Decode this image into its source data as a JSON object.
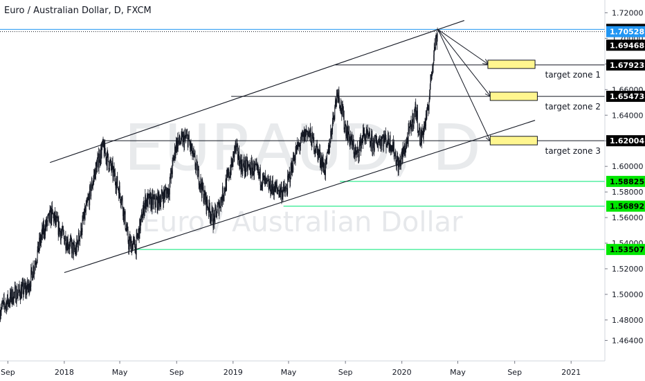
{
  "header": {
    "title": "Euro / Australian Dollar, D, FXCM"
  },
  "watermark": {
    "symbol": "EURAUD, D",
    "name": "Euro / Australian Dollar"
  },
  "colors": {
    "candle": "#131722",
    "trendline": "#131722",
    "hline_blue": "#2196f3",
    "hline_green": "#00e676",
    "zone_fill": "#fff68f",
    "zone_border": "#131722",
    "label_black": "#000000",
    "label_green": "#00e600",
    "label_blue": "#2196f3"
  },
  "chart_data": {
    "type": "candlestick",
    "symbol": "EURAUD",
    "timeframe": "D",
    "ylim": [
      1.448,
      1.73
    ],
    "xlim": [
      "2017-08-15",
      "2021-03-15"
    ],
    "y_ticks": [
      "1.72000",
      "1.70000",
      "1.68000",
      "1.66000",
      "1.64000",
      "1.62000",
      "1.60000",
      "1.58000",
      "1.56000",
      "1.54000",
      "1.52000",
      "1.50000",
      "1.48000",
      "1.46400"
    ],
    "y_tick_values": [
      1.72,
      1.7,
      1.68,
      1.66,
      1.64,
      1.62,
      1.6,
      1.58,
      1.56,
      1.54,
      1.52,
      1.5,
      1.48,
      1.464
    ],
    "x_ticks": [
      {
        "label": "Sep",
        "date": "2017-09-01"
      },
      {
        "label": "2018",
        "date": "2018-01-01"
      },
      {
        "label": "May",
        "date": "2018-05-01"
      },
      {
        "label": "Sep",
        "date": "2018-09-01"
      },
      {
        "label": "2019",
        "date": "2019-01-01"
      },
      {
        "label": "May",
        "date": "2019-05-01"
      },
      {
        "label": "Sep",
        "date": "2019-09-01"
      },
      {
        "label": "2020",
        "date": "2020-01-01"
      },
      {
        "label": "May",
        "date": "2020-05-01"
      },
      {
        "label": "Sep",
        "date": "2020-09-01"
      },
      {
        "label": "2021",
        "date": "2021-01-01"
      }
    ],
    "price_path": [
      [
        "2017-08-15",
        1.488
      ],
      [
        "2017-09-15",
        1.5
      ],
      [
        "2017-10-15",
        1.505
      ],
      [
        "2017-11-15",
        1.548
      ],
      [
        "2017-12-05",
        1.563
      ],
      [
        "2017-12-25",
        1.548
      ],
      [
        "2018-01-10",
        1.54
      ],
      [
        "2018-01-25",
        1.533
      ],
      [
        "2018-02-20",
        1.57
      ],
      [
        "2018-03-10",
        1.598
      ],
      [
        "2018-03-25",
        1.615
      ],
      [
        "2018-04-20",
        1.592
      ],
      [
        "2018-05-05",
        1.575
      ],
      [
        "2018-05-20",
        1.54
      ],
      [
        "2018-06-05",
        1.538
      ],
      [
        "2018-06-25",
        1.573
      ],
      [
        "2018-07-20",
        1.572
      ],
      [
        "2018-08-15",
        1.582
      ],
      [
        "2018-08-31",
        1.618
      ],
      [
        "2018-09-25",
        1.622
      ],
      [
        "2018-10-15",
        1.597
      ],
      [
        "2018-10-31",
        1.576
      ],
      [
        "2018-11-20",
        1.558
      ],
      [
        "2018-12-05",
        1.573
      ],
      [
        "2018-12-31",
        1.603
      ],
      [
        "2019-01-05",
        1.615
      ],
      [
        "2019-01-20",
        1.6
      ],
      [
        "2019-02-15",
        1.598
      ],
      [
        "2019-03-15",
        1.585
      ],
      [
        "2019-04-05",
        1.582
      ],
      [
        "2019-04-25",
        1.58
      ],
      [
        "2019-05-15",
        1.61
      ],
      [
        "2019-06-10",
        1.628
      ],
      [
        "2019-06-30",
        1.614
      ],
      [
        "2019-07-20",
        1.597
      ],
      [
        "2019-08-05",
        1.637
      ],
      [
        "2019-08-15",
        1.66
      ],
      [
        "2019-08-30",
        1.633
      ],
      [
        "2019-09-25",
        1.608
      ],
      [
        "2019-10-10",
        1.625
      ],
      [
        "2019-10-31",
        1.617
      ],
      [
        "2019-11-20",
        1.622
      ],
      [
        "2019-12-10",
        1.618
      ],
      [
        "2019-12-25",
        1.6
      ],
      [
        "2020-01-10",
        1.617
      ],
      [
        "2020-01-31",
        1.645
      ],
      [
        "2020-02-10",
        1.62
      ],
      [
        "2020-02-25",
        1.64
      ],
      [
        "2020-03-10",
        1.69
      ],
      [
        "2020-03-19",
        1.706
      ]
    ],
    "trendlines": [
      {
        "name": "upper-channel",
        "from": [
          "2017-12-01",
          1.603
        ],
        "to": [
          "2020-05-15",
          1.714
        ]
      },
      {
        "name": "lower-channel",
        "from": [
          "2018-01-01",
          1.517
        ],
        "to": [
          "2020-10-15",
          1.636
        ]
      }
    ],
    "arrows": [
      {
        "from": [
          "2020-03-19",
          1.707
        ],
        "to": [
          "2020-07-05",
          1.68
        ]
      },
      {
        "from": [
          "2020-03-19",
          1.707
        ],
        "to": [
          "2020-07-10",
          1.655
        ]
      },
      {
        "from": [
          "2020-03-19",
          1.707
        ],
        "to": [
          "2020-07-10",
          1.62
        ]
      }
    ],
    "horizontal_levels": [
      {
        "price": 1.70705,
        "label": "1.70705",
        "style": "solid",
        "color": "hline_blue",
        "from": "2017-08-15",
        "label_bg": "label_black"
      },
      {
        "price": 1.70528,
        "label": "1.70528",
        "style": "dotted",
        "color": "candle",
        "from": "2017-08-15",
        "label_bg": "label_blue"
      },
      {
        "price": 1.69468,
        "label": "1.69468",
        "style": "none",
        "color": "candle",
        "from": "2021-03-15",
        "label_bg": "label_black"
      },
      {
        "price": 1.67923,
        "label": "1.67923",
        "style": "solid",
        "color": "candle",
        "from": "2019-08-10",
        "label_bg": "label_black"
      },
      {
        "price": 1.65473,
        "label": "1.65473",
        "style": "solid",
        "color": "candle",
        "from": "2018-12-28",
        "label_bg": "label_black"
      },
      {
        "price": 1.62004,
        "label": "1.62004",
        "style": "solid",
        "color": "candle",
        "from": "2018-03-25",
        "label_bg": "label_black"
      },
      {
        "price": 1.58825,
        "label": "1.58825",
        "style": "solid",
        "color": "hline_green",
        "from": "2019-08-20",
        "label_bg": "label_green"
      },
      {
        "price": 1.56892,
        "label": "1.56892",
        "style": "solid",
        "color": "hline_green",
        "from": "2019-04-20",
        "label_bg": "label_green"
      },
      {
        "price": 1.53507,
        "label": "1.53507",
        "style": "solid",
        "color": "hline_green",
        "from": "2018-06-01",
        "label_bg": "label_green"
      }
    ],
    "target_zones": [
      {
        "label": "target zone 1",
        "from": "2020-07-05",
        "to": "2020-10-15",
        "top": 1.683,
        "bottom": 1.6765
      },
      {
        "label": "target zone 2",
        "from": "2020-07-10",
        "to": "2020-10-20",
        "top": 1.658,
        "bottom": 1.6515
      },
      {
        "label": "target zone 3",
        "from": "2020-07-10",
        "to": "2020-10-20",
        "top": 1.6235,
        "bottom": 1.6168
      }
    ]
  }
}
